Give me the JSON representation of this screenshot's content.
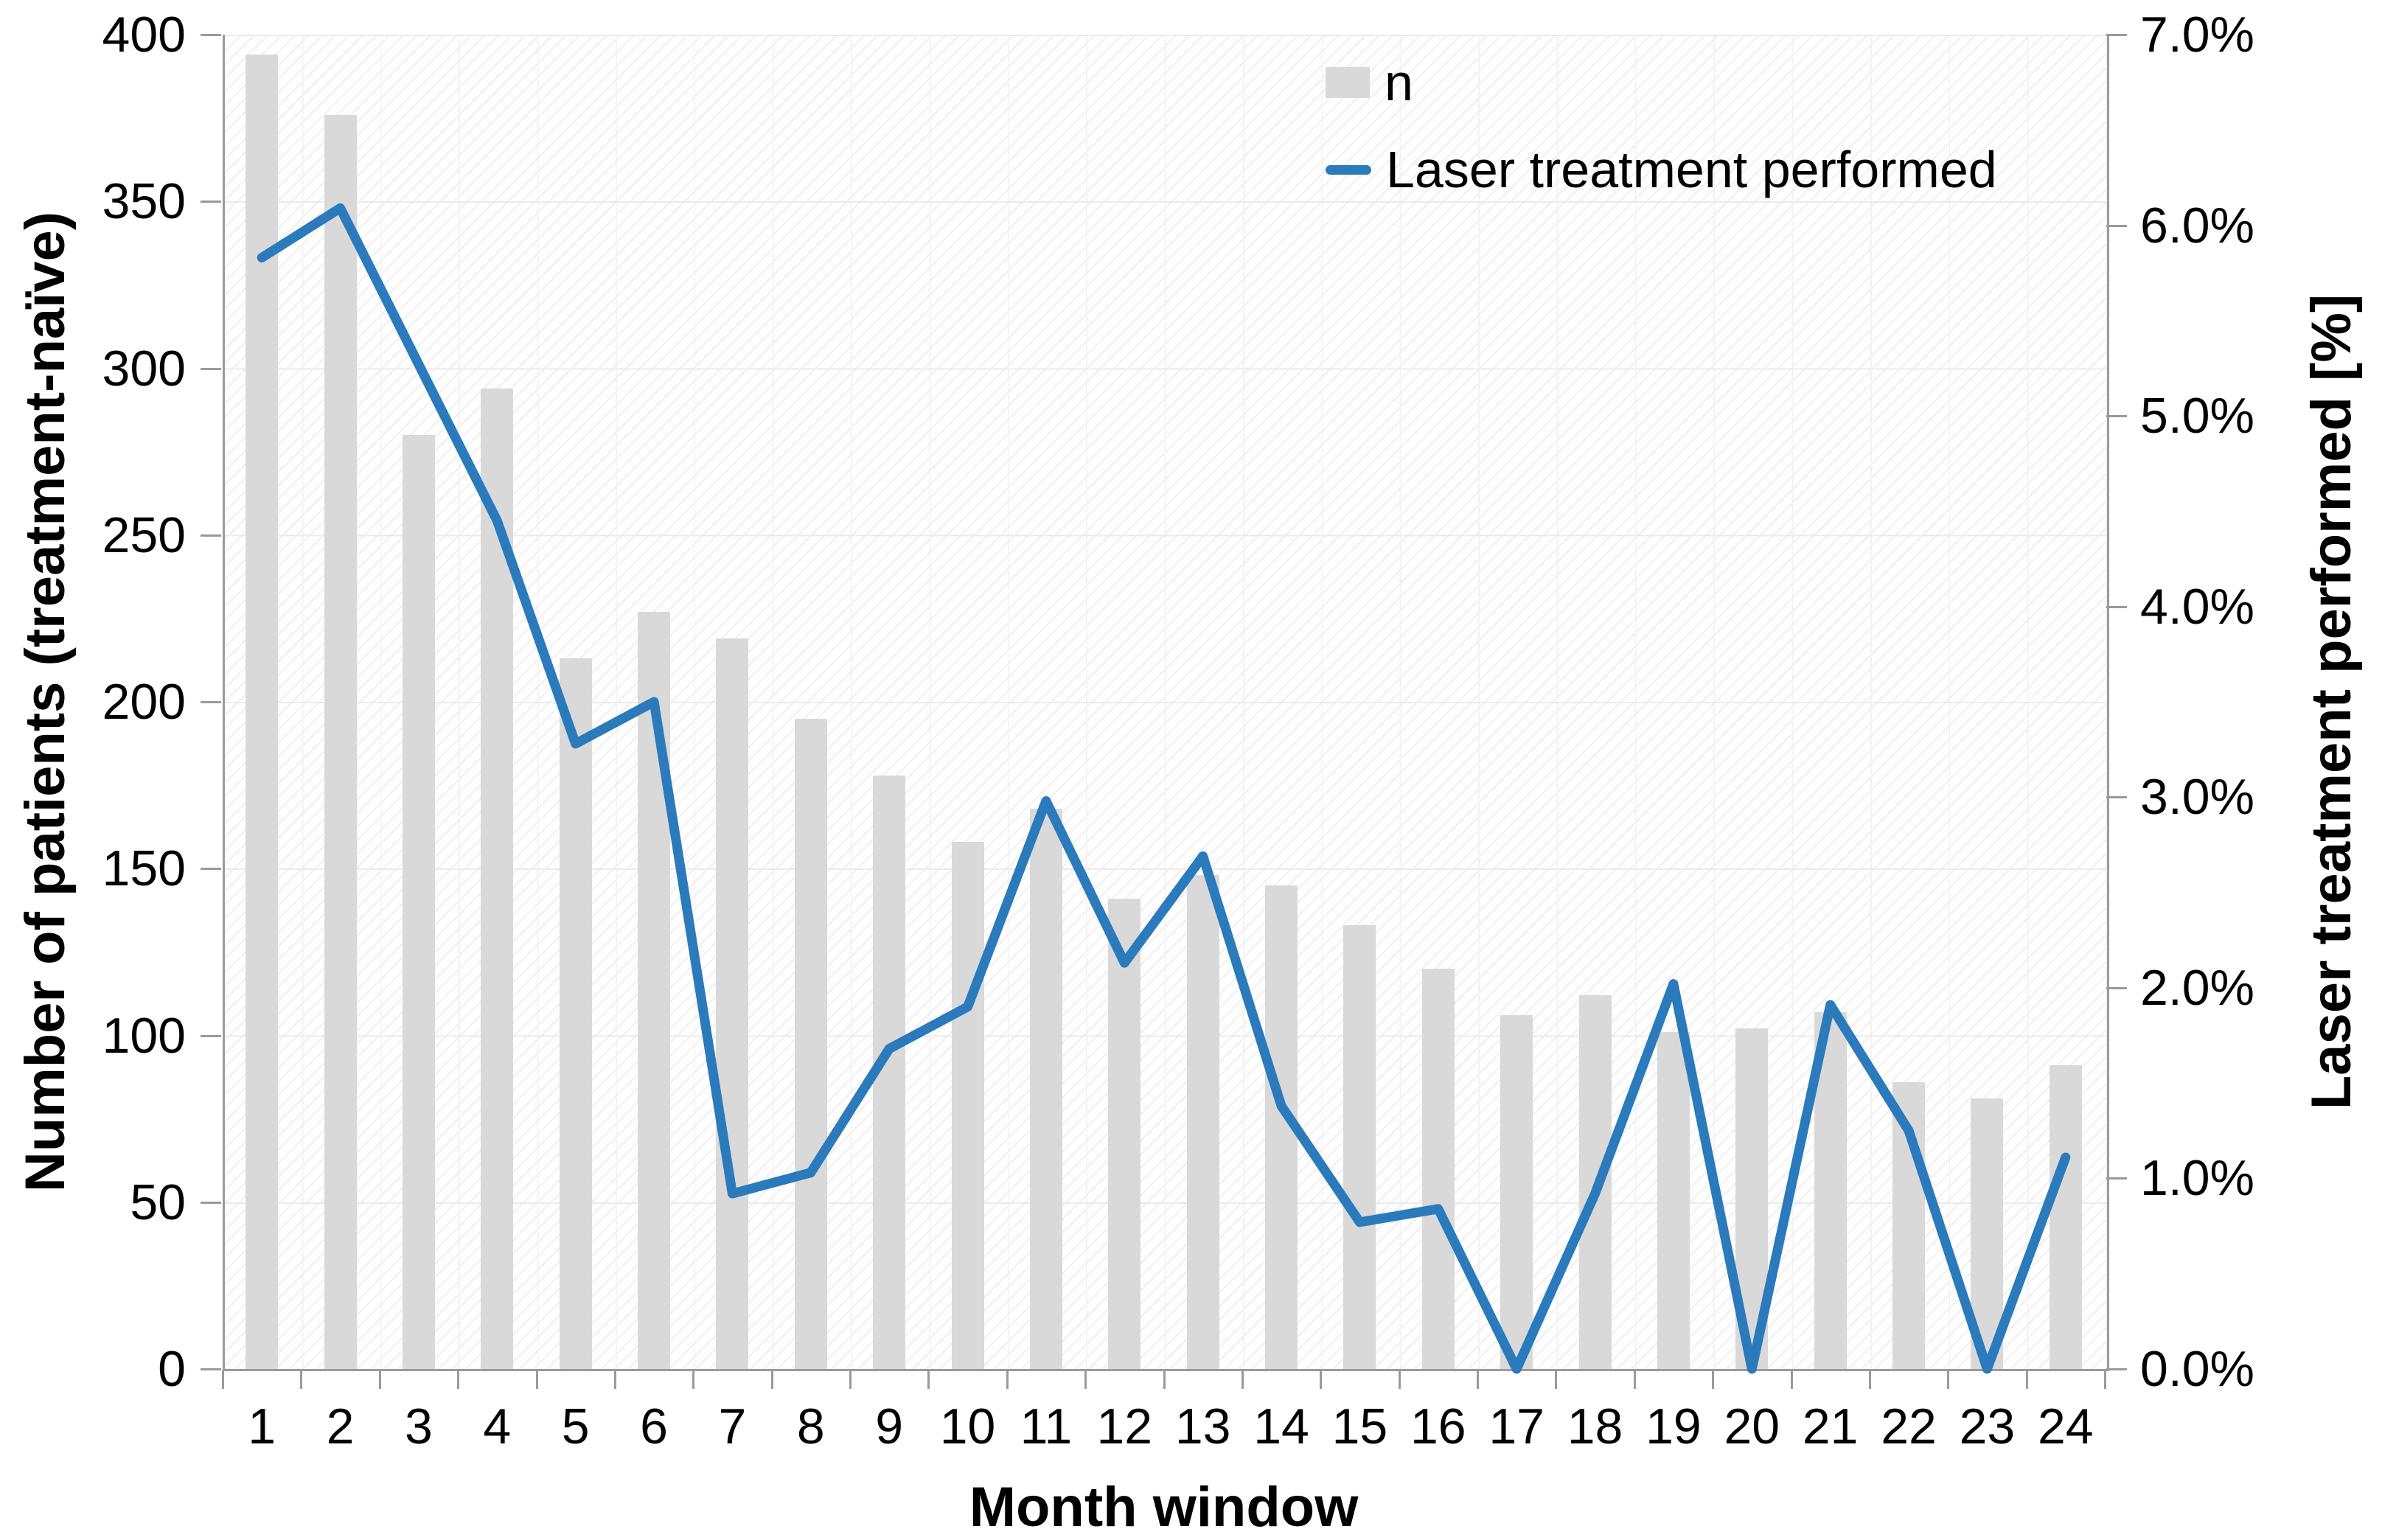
{
  "chart_data": {
    "type": "bar",
    "combo": "bar+line dual-axis",
    "title": "",
    "categories": [
      "1",
      "2",
      "3",
      "4",
      "5",
      "6",
      "7",
      "8",
      "9",
      "10",
      "11",
      "12",
      "13",
      "14",
      "15",
      "16",
      "17",
      "18",
      "19",
      "20",
      "21",
      "22",
      "23",
      "24"
    ],
    "x": {
      "label": "Month window"
    },
    "y_left": {
      "label": "Number of patients (treatment-naïve)",
      "min": 0,
      "max": 400,
      "tick_step": 50,
      "tick_labels": [
        "400",
        "350",
        "300",
        "250",
        "200",
        "150",
        "100",
        "50",
        "0"
      ]
    },
    "y_right": {
      "label": "Laser treatment performed [%]",
      "min": 0,
      "max": 7,
      "tick_step": 1,
      "tick_labels": [
        "7.0%",
        "6.0%",
        "5.0%",
        "4.0%",
        "3.0%",
        "2.0%",
        "1.0%",
        "0.0%"
      ]
    },
    "series": [
      {
        "name": "n",
        "type": "bar",
        "axis": "left",
        "color": "#d9d9d9",
        "values": [
          394,
          376,
          280,
          294,
          213,
          227,
          219,
          195,
          178,
          158,
          168,
          141,
          148,
          145,
          133,
          120,
          106,
          112,
          101,
          102,
          107,
          86,
          81,
          91
        ]
      },
      {
        "name": "Laser treatment performed",
        "type": "line",
        "axis": "right",
        "unit": "%",
        "color": "#2b7abc",
        "values": [
          5.83,
          6.09,
          5.27,
          4.45,
          3.28,
          3.5,
          0.92,
          1.03,
          1.68,
          1.9,
          2.98,
          2.13,
          2.69,
          1.38,
          0.77,
          0.84,
          0.0,
          0.92,
          2.02,
          0.0,
          1.91,
          1.25,
          0.0,
          1.11
        ]
      }
    ],
    "legend": {
      "position": "top-right-inside",
      "items": [
        "n",
        "Laser treatment performed"
      ]
    },
    "grid": {
      "horizontal": true,
      "vertical": true,
      "plot_fill": "diagonal-hatch"
    }
  },
  "colors": {
    "bar": "#d9d9d9",
    "line": "#2b7abc",
    "axis": "#9a9a9a",
    "gridline": "#ebebeb",
    "text": "#000000"
  }
}
